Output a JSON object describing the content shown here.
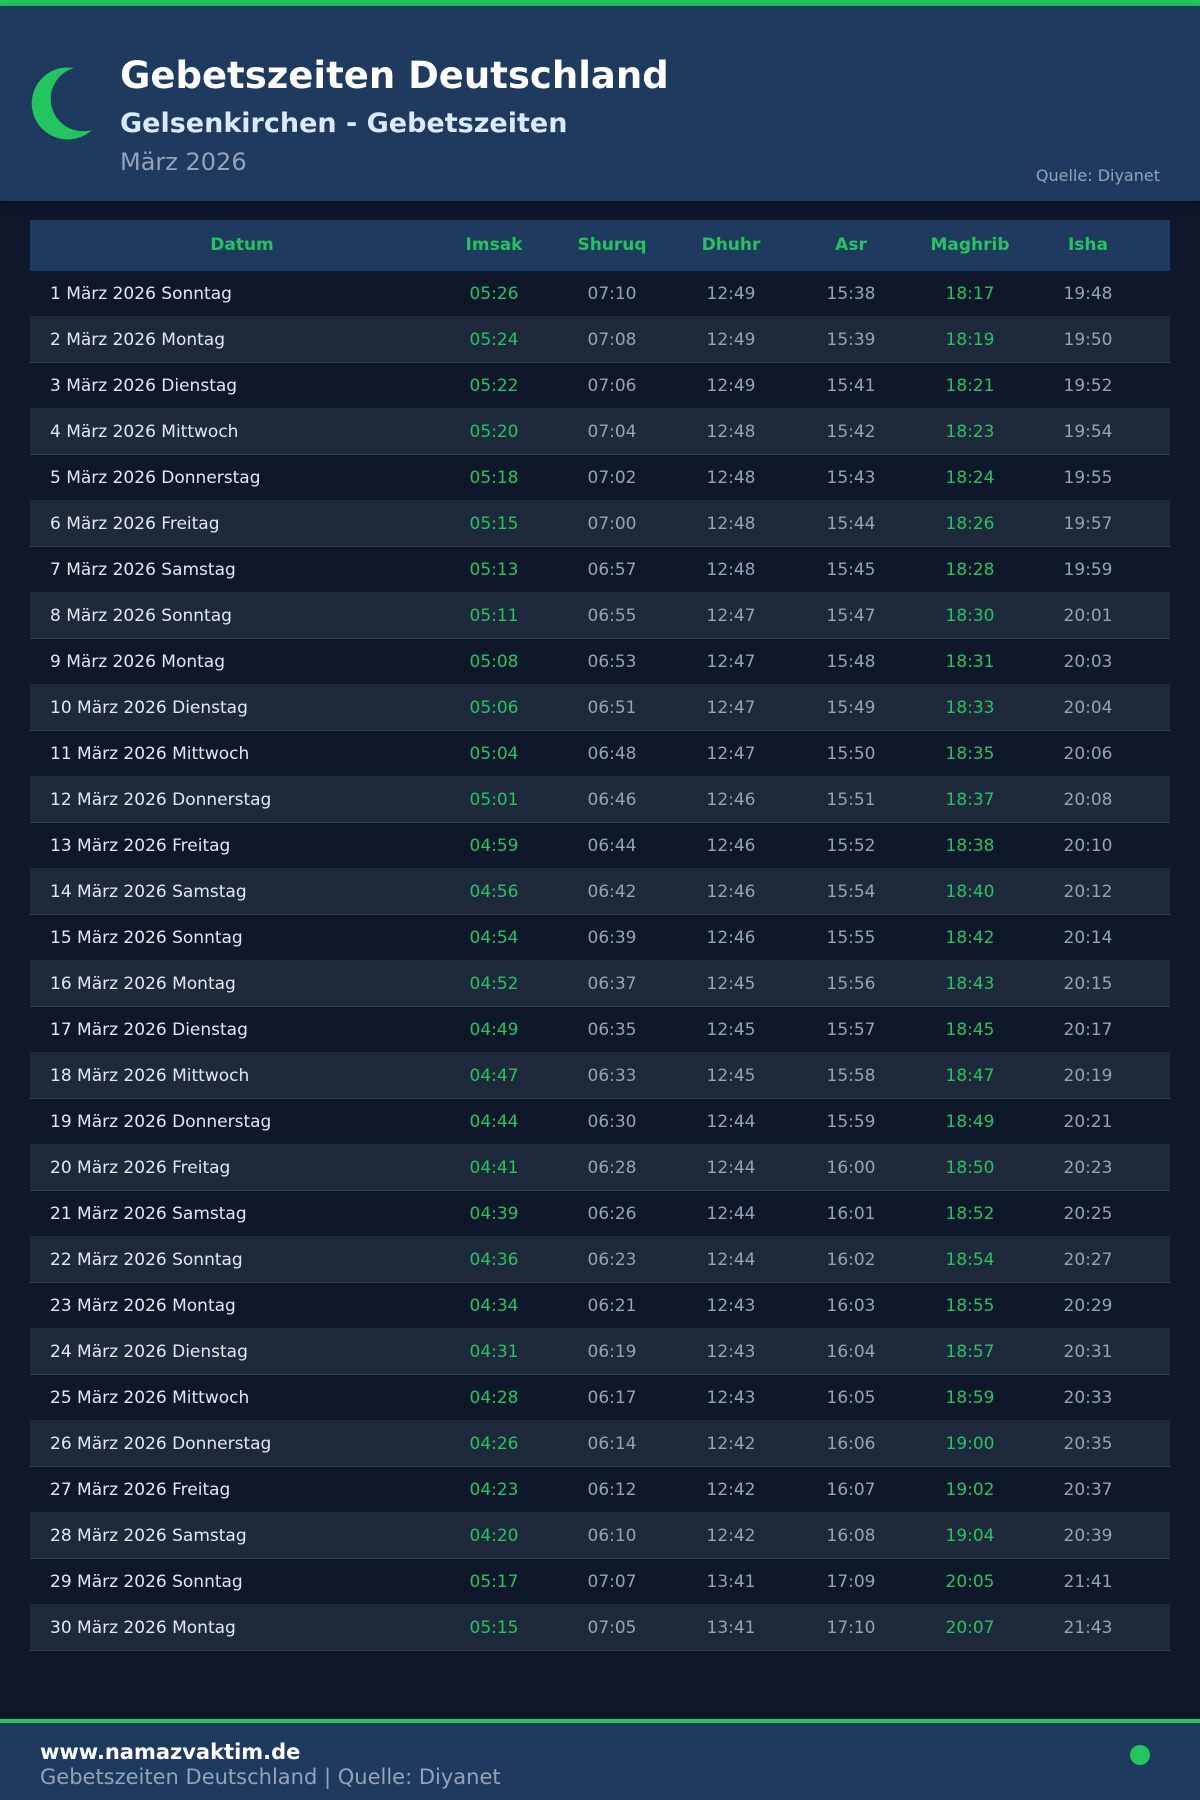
{
  "header": {
    "title": "Gebetszeiten Deutschland",
    "subtitle": "Gelsenkirchen - Gebetszeiten",
    "month": "März 2026",
    "source": "Quelle: Diyanet"
  },
  "colors": {
    "accent": "#22c55e",
    "header_bg": "#1e3a5f",
    "page_bg": "#0f172a"
  },
  "icons": {
    "logo": "crescent-moon-icon",
    "footer": "status-dot-icon"
  },
  "table": {
    "columns": [
      "Datum",
      "Imsak",
      "Shuruq",
      "Dhuhr",
      "Asr",
      "Maghrib",
      "Isha"
    ],
    "rows": [
      [
        "1 März 2026 Sonntag",
        "05:26",
        "07:10",
        "12:49",
        "15:38",
        "18:17",
        "19:48"
      ],
      [
        "2 März 2026 Montag",
        "05:24",
        "07:08",
        "12:49",
        "15:39",
        "18:19",
        "19:50"
      ],
      [
        "3 März 2026 Dienstag",
        "05:22",
        "07:06",
        "12:49",
        "15:41",
        "18:21",
        "19:52"
      ],
      [
        "4 März 2026 Mittwoch",
        "05:20",
        "07:04",
        "12:48",
        "15:42",
        "18:23",
        "19:54"
      ],
      [
        "5 März 2026 Donnerstag",
        "05:18",
        "07:02",
        "12:48",
        "15:43",
        "18:24",
        "19:55"
      ],
      [
        "6 März 2026 Freitag",
        "05:15",
        "07:00",
        "12:48",
        "15:44",
        "18:26",
        "19:57"
      ],
      [
        "7 März 2026 Samstag",
        "05:13",
        "06:57",
        "12:48",
        "15:45",
        "18:28",
        "19:59"
      ],
      [
        "8 März 2026 Sonntag",
        "05:11",
        "06:55",
        "12:47",
        "15:47",
        "18:30",
        "20:01"
      ],
      [
        "9 März 2026 Montag",
        "05:08",
        "06:53",
        "12:47",
        "15:48",
        "18:31",
        "20:03"
      ],
      [
        "10 März 2026 Dienstag",
        "05:06",
        "06:51",
        "12:47",
        "15:49",
        "18:33",
        "20:04"
      ],
      [
        "11 März 2026 Mittwoch",
        "05:04",
        "06:48",
        "12:47",
        "15:50",
        "18:35",
        "20:06"
      ],
      [
        "12 März 2026 Donnerstag",
        "05:01",
        "06:46",
        "12:46",
        "15:51",
        "18:37",
        "20:08"
      ],
      [
        "13 März 2026 Freitag",
        "04:59",
        "06:44",
        "12:46",
        "15:52",
        "18:38",
        "20:10"
      ],
      [
        "14 März 2026 Samstag",
        "04:56",
        "06:42",
        "12:46",
        "15:54",
        "18:40",
        "20:12"
      ],
      [
        "15 März 2026 Sonntag",
        "04:54",
        "06:39",
        "12:46",
        "15:55",
        "18:42",
        "20:14"
      ],
      [
        "16 März 2026 Montag",
        "04:52",
        "06:37",
        "12:45",
        "15:56",
        "18:43",
        "20:15"
      ],
      [
        "17 März 2026 Dienstag",
        "04:49",
        "06:35",
        "12:45",
        "15:57",
        "18:45",
        "20:17"
      ],
      [
        "18 März 2026 Mittwoch",
        "04:47",
        "06:33",
        "12:45",
        "15:58",
        "18:47",
        "20:19"
      ],
      [
        "19 März 2026 Donnerstag",
        "04:44",
        "06:30",
        "12:44",
        "15:59",
        "18:49",
        "20:21"
      ],
      [
        "20 März 2026 Freitag",
        "04:41",
        "06:28",
        "12:44",
        "16:00",
        "18:50",
        "20:23"
      ],
      [
        "21 März 2026 Samstag",
        "04:39",
        "06:26",
        "12:44",
        "16:01",
        "18:52",
        "20:25"
      ],
      [
        "22 März 2026 Sonntag",
        "04:36",
        "06:23",
        "12:44",
        "16:02",
        "18:54",
        "20:27"
      ],
      [
        "23 März 2026 Montag",
        "04:34",
        "06:21",
        "12:43",
        "16:03",
        "18:55",
        "20:29"
      ],
      [
        "24 März 2026 Dienstag",
        "04:31",
        "06:19",
        "12:43",
        "16:04",
        "18:57",
        "20:31"
      ],
      [
        "25 März 2026 Mittwoch",
        "04:28",
        "06:17",
        "12:43",
        "16:05",
        "18:59",
        "20:33"
      ],
      [
        "26 März 2026 Donnerstag",
        "04:26",
        "06:14",
        "12:42",
        "16:06",
        "19:00",
        "20:35"
      ],
      [
        "27 März 2026 Freitag",
        "04:23",
        "06:12",
        "12:42",
        "16:07",
        "19:02",
        "20:37"
      ],
      [
        "28 März 2026 Samstag",
        "04:20",
        "06:10",
        "12:42",
        "16:08",
        "19:04",
        "20:39"
      ],
      [
        "29 März 2026 Sonntag",
        "05:17",
        "07:07",
        "13:41",
        "17:09",
        "20:05",
        "21:41"
      ],
      [
        "30 März 2026 Montag",
        "05:15",
        "07:05",
        "13:41",
        "17:10",
        "20:07",
        "21:43"
      ]
    ]
  },
  "footer": {
    "site": "www.namazvaktim.de",
    "text": "Gebetszeiten Deutschland | Quelle: Diyanet"
  }
}
